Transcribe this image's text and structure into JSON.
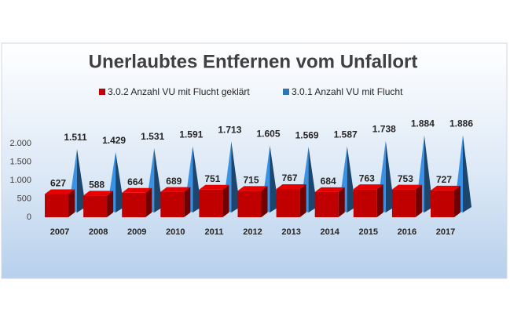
{
  "chart_data": {
    "type": "bar3d",
    "title": "Unerlaubtes Entfernen vom Unfallort",
    "categories": [
      "2007",
      "2008",
      "2009",
      "2010",
      "2011",
      "2012",
      "2013",
      "2014",
      "2015",
      "2016",
      "2017"
    ],
    "series": [
      {
        "name": "3.0.2 Anzahl VU mit Flucht geklärt",
        "color": "#c00000",
        "shape": "box",
        "values": [
          627,
          588,
          664,
          689,
          751,
          715,
          767,
          684,
          763,
          753,
          727
        ]
      },
      {
        "name": "3.0.1 Anzahl VU mit Flucht",
        "color": "#2e75b6",
        "shape": "pyramid",
        "values": [
          1511,
          1429,
          1531,
          1591,
          1713,
          1605,
          1569,
          1587,
          1738,
          1884,
          1886
        ],
        "value_labels": [
          "1.511",
          "1.429",
          "1.531",
          "1.591",
          "1.713",
          "1.605",
          "1.569",
          "1.587",
          "1.738",
          "1.884",
          "1.886"
        ]
      }
    ],
    "ylim": [
      0,
      2000
    ],
    "yticks": [
      0,
      500,
      {
        "value": 1000,
        "label": "1.000"
      },
      {
        "value": 1500,
        "label": "1.500"
      },
      {
        "value": 2000,
        "label": "2.000"
      }
    ]
  }
}
